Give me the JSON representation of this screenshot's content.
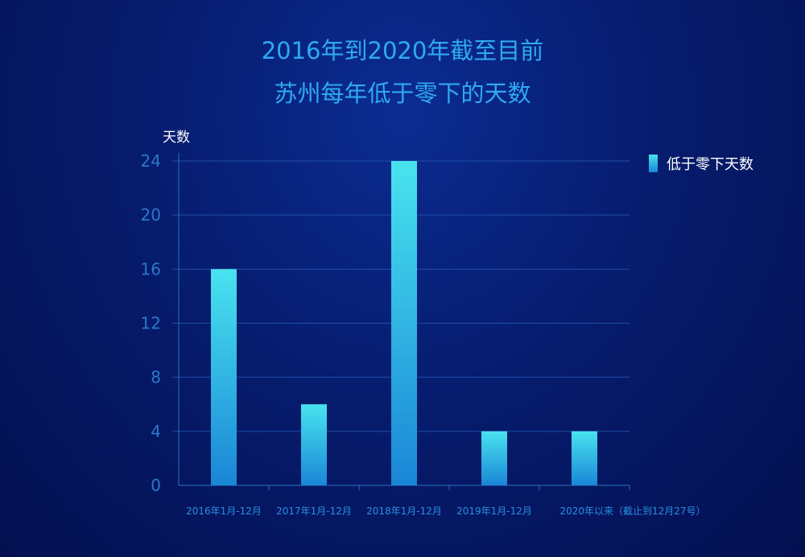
{
  "chart_data": {
    "type": "bar",
    "title": [
      "2016年到2020年截至目前",
      "苏州每年低于零下的天数"
    ],
    "ylabel": "天数",
    "xlabel": "",
    "categories": [
      "2016年1月-12月",
      "2017年1月-12月",
      "2018年1月-12月",
      "2019年1月-12月",
      "2020年以来（截止到12月27号）"
    ],
    "series": [
      {
        "name": "低于零下天数",
        "values": [
          16,
          6,
          24,
          4,
          4
        ]
      }
    ],
    "ylim": [
      0,
      24
    ],
    "yticks": [
      0,
      4,
      8,
      12,
      16,
      20,
      24
    ],
    "grid": true,
    "legend": "top-right",
    "colors": {
      "bar_top": "#48e3ef",
      "bar_bottom": "#1a86d6",
      "title": "#2fa9f2",
      "axis": "#2a6fc0",
      "tick_label": "#2a78c8"
    }
  }
}
